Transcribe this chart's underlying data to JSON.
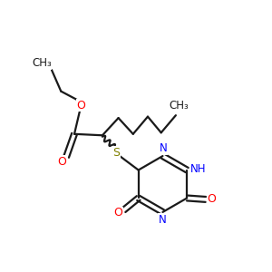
{
  "background_color": "#ffffff",
  "bond_color": "#1a1a1a",
  "nitrogen_color": "#0000ff",
  "oxygen_color": "#ff0000",
  "sulfur_color": "#808000",
  "figsize": [
    3.0,
    3.0
  ],
  "dpi": 100,
  "xlim": [
    0,
    10
  ],
  "ylim": [
    0,
    10
  ]
}
